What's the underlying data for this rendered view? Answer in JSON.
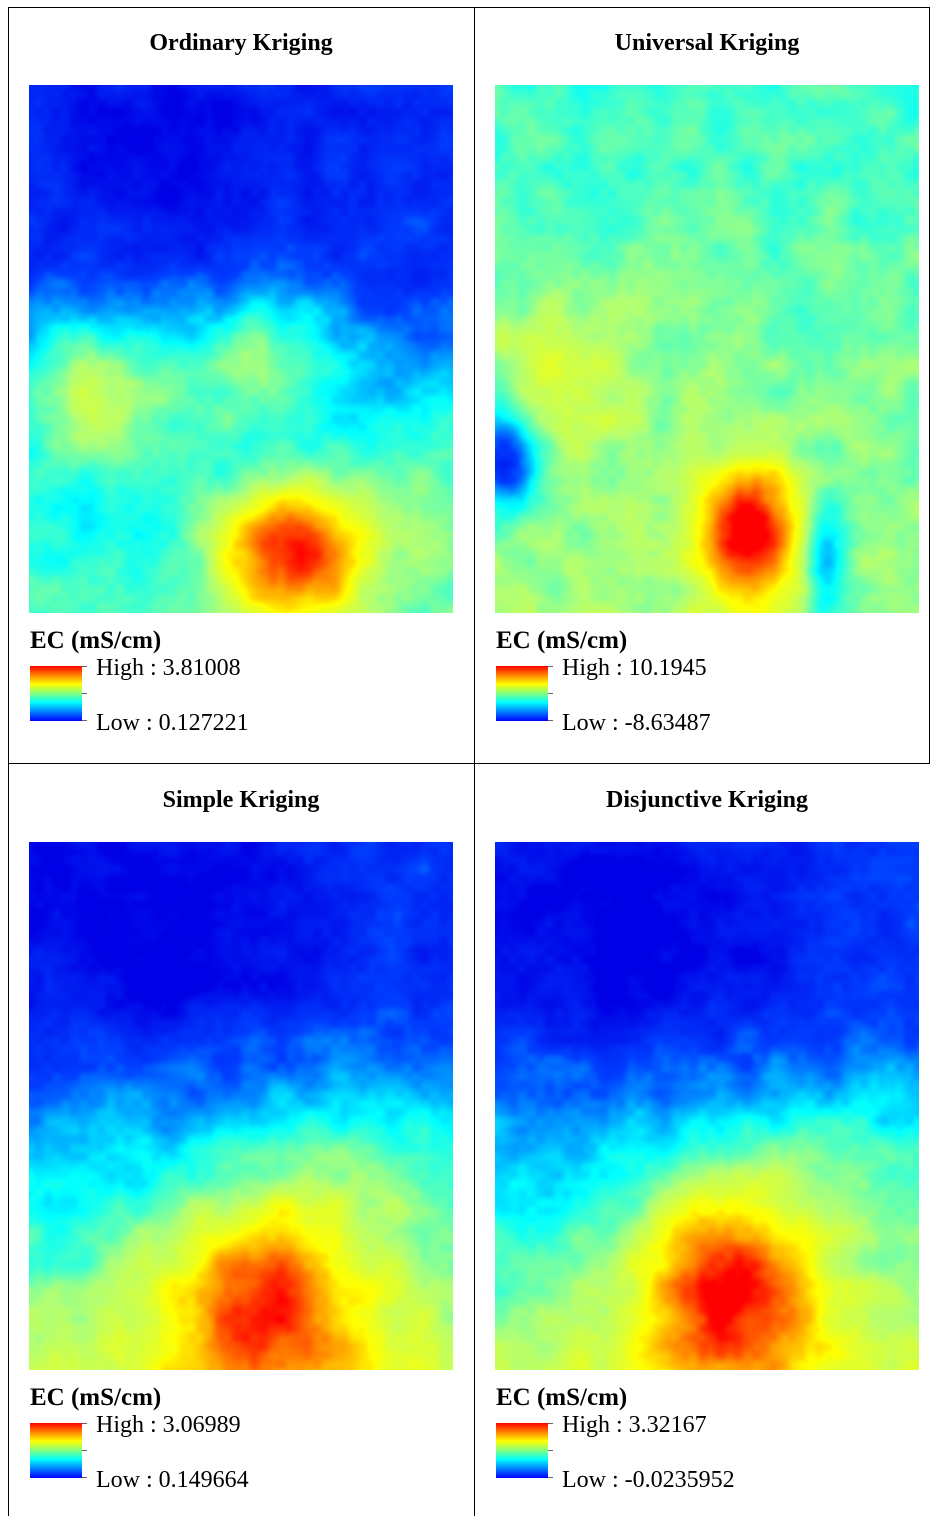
{
  "panels": [
    {
      "title": "Ordinary Kriging",
      "legend": {
        "title": "EC (mS/cm)",
        "high": "High : 3.81008",
        "low": "Low : 0.127221"
      },
      "pattern": "ordinary"
    },
    {
      "title": "Universal Kriging",
      "legend": {
        "title": "EC (mS/cm)",
        "high": "High : 10.1945",
        "low": "Low : -8.63487"
      },
      "pattern": "universal"
    },
    {
      "title": "Simple Kriging",
      "legend": {
        "title": "EC (mS/cm)",
        "high": "High : 3.06989",
        "low": "Low : 0.149664"
      },
      "pattern": "simple"
    },
    {
      "title": "Disjunctive Kriging",
      "legend": {
        "title": "EC (mS/cm)",
        "high": "High : 3.32167",
        "low": "Low : -0.0235952"
      },
      "pattern": "disjunctive"
    }
  ],
  "colors": {
    "high": "#ff0000",
    "mid": "#ffff00",
    "cyan": "#00ffff",
    "low": "#0000ff",
    "border": "#000000"
  }
}
